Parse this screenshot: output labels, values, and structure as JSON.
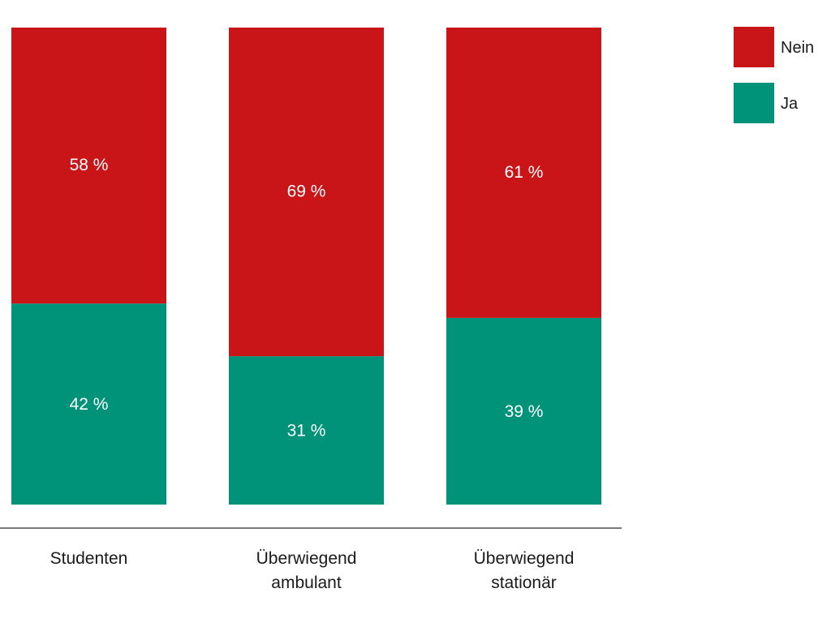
{
  "chart_data": {
    "type": "bar",
    "stacked": true,
    "categories": [
      "Studenten",
      "Überwiegend ambulant",
      "Überwiegend stationär"
    ],
    "category_lines": [
      [
        "Studenten"
      ],
      [
        "Überwiegend",
        "ambulant"
      ],
      [
        "Überwiegend",
        "stationär"
      ]
    ],
    "series": [
      {
        "name": "Ja",
        "values": [
          42,
          31,
          39
        ],
        "labels": [
          "42 %",
          "31 %",
          "39 %"
        ]
      },
      {
        "name": "Nein",
        "values": [
          58,
          69,
          61
        ],
        "labels": [
          "58 %",
          "69 %",
          "61 %"
        ]
      }
    ],
    "colors": {
      "Ja": "#00937a",
      "Nein": "#c91517"
    },
    "legend": {
      "position": "top-right",
      "order": [
        "Nein",
        "Ja"
      ]
    },
    "ylim": [
      0,
      100
    ],
    "grid": false,
    "title": "",
    "xlabel": "",
    "ylabel": ""
  }
}
